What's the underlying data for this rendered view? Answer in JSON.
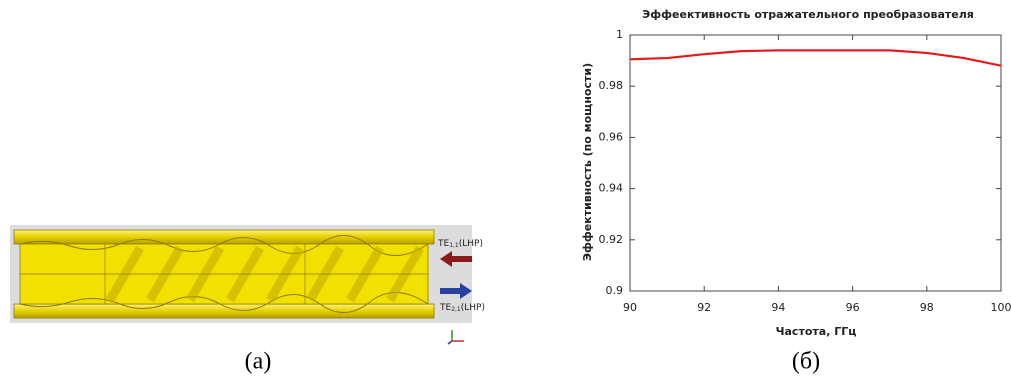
{
  "chart_data": {
    "type": "line",
    "title": "Эффеективность отражательного преобразователя",
    "xlabel": "Частота, ГГц",
    "ylabel": "Эффективность (по мощности)",
    "x": [
      90,
      91,
      92,
      93,
      94,
      95,
      96,
      97,
      98,
      99,
      100
    ],
    "values": [
      0.9905,
      0.991,
      0.9925,
      0.9937,
      0.994,
      0.994,
      0.994,
      0.994,
      0.993,
      0.991,
      0.988
    ],
    "color": "#e8191a",
    "xlim": [
      90,
      100
    ],
    "xticks": [
      90,
      92,
      94,
      96,
      98,
      100
    ],
    "ylim": [
      0.9,
      1
    ],
    "yticks": [
      0.9,
      0.92,
      0.94,
      0.96,
      0.98,
      1
    ],
    "grid": false
  },
  "figure": {
    "captions": [
      "(a)",
      "(б)"
    ],
    "mode_labels": [
      {
        "main": "TE",
        "sub": "1,1",
        "rest": "(LHP)"
      },
      {
        "main": "TE",
        "sub": "2,1",
        "rest": "(LHP)"
      }
    ]
  }
}
